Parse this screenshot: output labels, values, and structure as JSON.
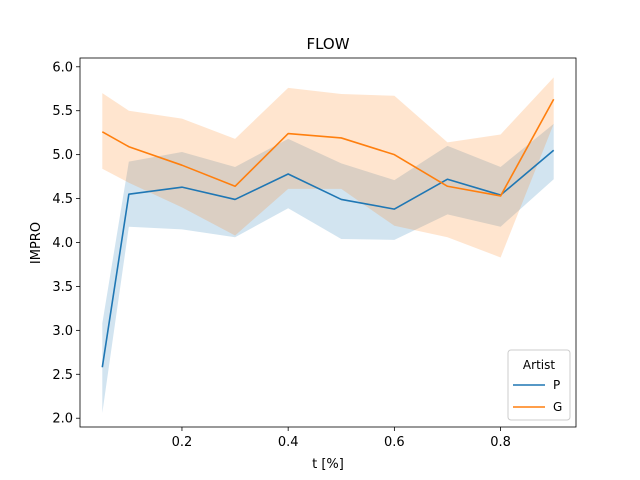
{
  "chart_data": {
    "type": "line",
    "title": "FLOW",
    "xlabel": "t [%]",
    "ylabel": "IMPRO",
    "xlim": [
      0.008,
      0.942
    ],
    "ylim": [
      1.9,
      6.1
    ],
    "xticks": [
      0.2,
      0.4,
      0.6,
      0.8
    ],
    "yticks": [
      2.0,
      2.5,
      3.0,
      3.5,
      4.0,
      4.5,
      5.0,
      5.5,
      6.0
    ],
    "grid": false,
    "legend": {
      "title": "Artist",
      "placement": "bottom-right"
    },
    "series": [
      {
        "name": "P",
        "color": "#1f77b4",
        "x": [
          0.05,
          0.1,
          0.2,
          0.3,
          0.4,
          0.5,
          0.6,
          0.7,
          0.8,
          0.9
        ],
        "y": [
          2.58,
          4.55,
          4.63,
          4.49,
          4.78,
          4.49,
          4.38,
          4.72,
          4.54,
          5.05
        ],
        "ci_low": [
          2.06,
          4.18,
          4.15,
          4.06,
          4.39,
          4.04,
          4.03,
          4.32,
          4.18,
          4.72
        ],
        "ci_high": [
          3.08,
          4.92,
          5.03,
          4.86,
          5.18,
          4.9,
          4.71,
          5.1,
          4.86,
          5.35
        ]
      },
      {
        "name": "G",
        "color": "#ff7f0e",
        "x": [
          0.05,
          0.1,
          0.2,
          0.3,
          0.4,
          0.5,
          0.6,
          0.7,
          0.8,
          0.9
        ],
        "y": [
          5.26,
          5.09,
          4.88,
          4.64,
          5.24,
          5.19,
          5.0,
          4.64,
          4.53,
          5.63
        ],
        "ci_low": [
          4.84,
          4.68,
          4.4,
          4.08,
          4.61,
          4.61,
          4.19,
          4.06,
          3.83,
          5.35
        ],
        "ci_high": [
          5.7,
          5.5,
          5.41,
          5.18,
          5.76,
          5.69,
          5.67,
          5.14,
          5.23,
          5.88
        ]
      }
    ]
  }
}
